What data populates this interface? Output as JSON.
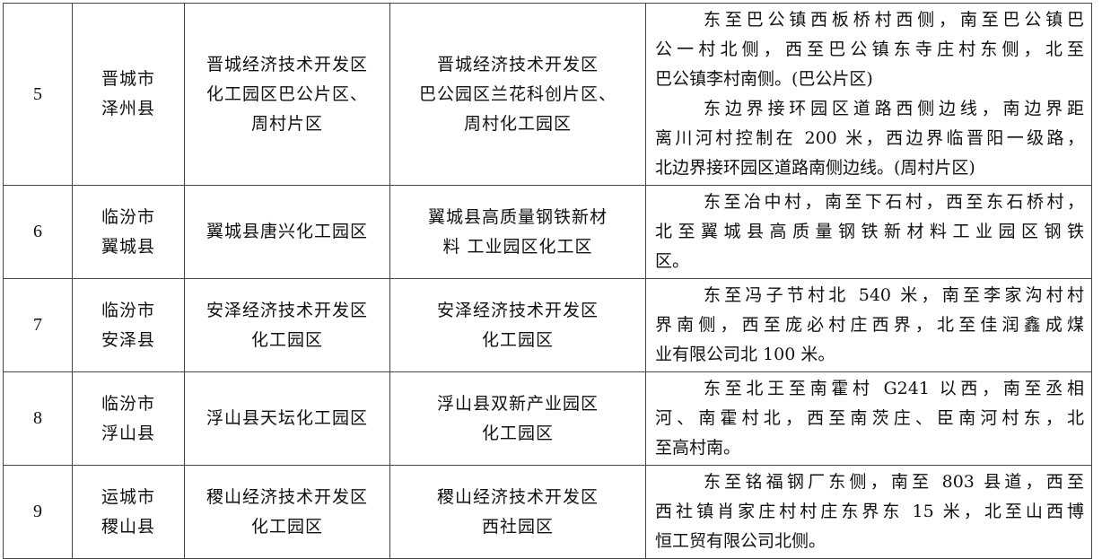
{
  "rows": [
    {
      "no": "5",
      "city": [
        "晋城市",
        "泽州县"
      ],
      "park": [
        "晋城经济技术开发区",
        "化工园区巴公片区、",
        "周村片区"
      ],
      "zone": [
        "晋城经济技术开发区",
        "巴公园区兰花科创片区、",
        "周村化工园区"
      ],
      "bounds": [
        [
          "东至巴公镇西板桥村西侧，南至巴公镇巴",
          "公一村北侧，西至巴公镇东寺庄村东侧，北至",
          "巴公镇李村南侧。(巴公片区)"
        ],
        [
          "东边界接环园区道路西侧边线，南边界距",
          "离川河村控制在 200 米，西边界临晋阳一级路，",
          "北边界接环园区道路南侧边线。(周村片区)"
        ]
      ]
    },
    {
      "no": "6",
      "city": [
        "临汾市",
        "翼城县"
      ],
      "park": [
        "翼城县唐兴化工园区"
      ],
      "zone": [
        "翼城县高质量钢铁新材",
        "料  工业园区化工区"
      ],
      "bounds": [
        [
          "东至冶中村，南至下石村，西至东石桥村，",
          "北至翼城县高质量钢铁新材料工业园区钢铁",
          "区。"
        ]
      ]
    },
    {
      "no": "7",
      "city": [
        "临汾市",
        "安泽县"
      ],
      "park": [
        "安泽经济技术开发区",
        "化工园区"
      ],
      "zone": [
        "安泽经济技术开发区",
        "化工园区"
      ],
      "bounds": [
        [
          "东至冯子节村北 540 米，南至李家沟村村",
          "界南侧，西至庞必村庄西界，北至佳润鑫成煤",
          "业有限公司北 100 米。"
        ]
      ]
    },
    {
      "no": "8",
      "city": [
        "临汾市",
        "浮山县"
      ],
      "park": [
        "浮山县天坛化工园区"
      ],
      "zone": [
        "浮山县双新产业园区",
        "化工园区"
      ],
      "bounds": [
        [
          "东至北王至南霍村 G241 以西，南至丞相",
          "河、南霍村北，西至南茨庄、臣南河村东，北",
          "至高村南。"
        ]
      ]
    },
    {
      "no": "9",
      "city": [
        "运城市",
        "稷山县"
      ],
      "park": [
        "稷山经济技术开发区",
        "化工园区"
      ],
      "zone": [
        "稷山经济技术开发区",
        "西社园区"
      ],
      "bounds": [
        [
          "东至铭福钢厂东侧，南至 803 县道，西至",
          "西社镇肖家庄村村庄东界东 15 米，北至山西博",
          "恒工贸有限公司北侧。"
        ]
      ]
    }
  ]
}
